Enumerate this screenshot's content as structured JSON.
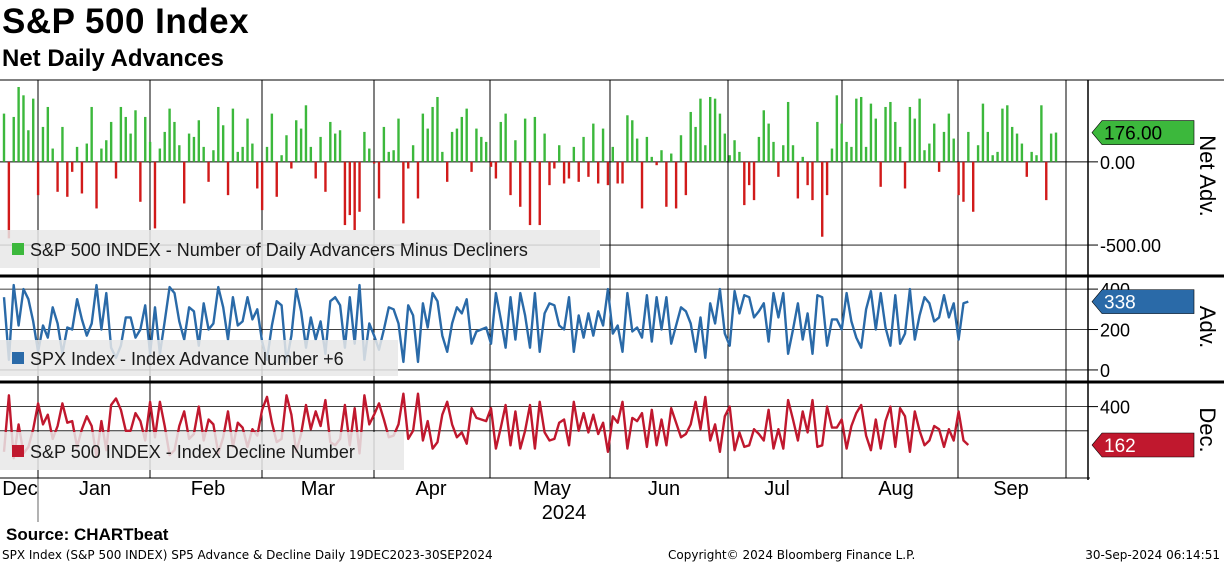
{
  "header": {
    "title": "S&P 500 Index",
    "subtitle": "Net Daily Advances"
  },
  "footer": {
    "source": "Source: CHARTbeat",
    "left": "SPX Index (S&P 500 INDEX) SP5 Advance & Decline  Daily 19DEC2023-30SEP2024",
    "mid": "Copyright© 2024 Bloomberg Finance L.P.",
    "right": "30-Sep-2024 06:14:51"
  },
  "colors": {
    "positive": "#3cb83c",
    "negative": "#d11a1a",
    "advance": "#2a6aa8",
    "decline": "#c0182e",
    "net_tag": "#3cb83c",
    "adv_tag": "#2a6aa8",
    "dec_tag": "#c0182e"
  },
  "chart_data": [
    {
      "type": "bar",
      "title": "Net Daily Advances",
      "ylabel": "Net Adv.",
      "legend": "S&P 500 INDEX - Number of Daily Advancers Minus Decliners",
      "legend_placement": "bottom-left",
      "yticks": [
        "0.00",
        "-500.00"
      ],
      "ylim": [
        -650,
        480
      ],
      "last_value_label": "176.00",
      "values": [
        290,
        -460,
        270,
        450,
        400,
        190,
        380,
        -200,
        210,
        330,
        80,
        -180,
        210,
        -210,
        -60,
        90,
        -190,
        110,
        330,
        -280,
        80,
        130,
        240,
        -100,
        330,
        270,
        170,
        310,
        -240,
        270,
        120,
        -400,
        80,
        180,
        320,
        240,
        100,
        -250,
        170,
        150,
        250,
        90,
        -120,
        70,
        330,
        220,
        -200,
        320,
        60,
        90,
        260,
        110,
        -160,
        -290,
        90,
        290,
        -210,
        40,
        160,
        -40,
        250,
        200,
        340,
        90,
        -100,
        150,
        -180,
        240,
        170,
        190,
        -380,
        -320,
        -410,
        -300,
        180,
        80,
        -10,
        -220,
        210,
        60,
        70,
        260,
        -370,
        -40,
        100,
        -220,
        290,
        200,
        330,
        390,
        60,
        -120,
        180,
        200,
        270,
        320,
        -60,
        200,
        150,
        120,
        -30,
        -100,
        240,
        290,
        -200,
        130,
        -270,
        260,
        -380,
        270,
        -380,
        170,
        -140,
        -40,
        100,
        -130,
        -100,
        90,
        -120,
        150,
        -90,
        230,
        -130,
        200,
        -140,
        90,
        -130,
        -130,
        280,
        250,
        140,
        -280,
        150,
        30,
        -20,
        70,
        -270,
        50,
        -280,
        160,
        -200,
        300,
        210,
        380,
        100,
        390,
        380,
        290,
        170,
        40,
        130,
        60,
        -260,
        -140,
        -230,
        150,
        310,
        230,
        120,
        -90,
        100,
        360,
        100,
        -220,
        30,
        -140,
        -230,
        240,
        -450,
        -200,
        80,
        400,
        230,
        120,
        90,
        380,
        390,
        90,
        350,
        260,
        -150,
        330,
        360,
        240,
        90,
        -160,
        330,
        260,
        380,
        70,
        110,
        230,
        -60,
        180,
        290,
        140,
        -200,
        -240,
        180,
        -300,
        100,
        350,
        180,
        40,
        60,
        320,
        340,
        210,
        170,
        110,
        -90,
        60,
        40,
        340,
        -230,
        170,
        176
      ]
    },
    {
      "type": "line",
      "title": "SPX Index - Index Advance Number +6",
      "ylabel": "Adv.",
      "legend": "SPX Index - Index Advance Number +6",
      "legend_placement": "bottom-left",
      "yticks": [
        "400",
        "200",
        "0"
      ],
      "ylim": [
        -30,
        450
      ],
      "last_value_label": "338",
      "values": [
        360,
        50,
        420,
        220,
        400,
        350,
        240,
        90,
        220,
        160,
        310,
        230,
        80,
        210,
        200,
        350,
        250,
        170,
        230,
        420,
        200,
        380,
        110,
        60,
        120,
        260,
        260,
        160,
        200,
        320,
        80,
        310,
        80,
        240,
        410,
        380,
        240,
        150,
        310,
        290,
        120,
        330,
        200,
        230,
        410,
        310,
        150,
        360,
        220,
        240,
        360,
        250,
        300,
        140,
        50,
        220,
        340,
        320,
        40,
        170,
        400,
        290,
        110,
        260,
        150,
        240,
        80,
        340,
        360,
        320,
        110,
        360,
        130,
        420,
        50,
        230,
        170,
        100,
        200,
        310,
        300,
        230,
        40,
        320,
        270,
        40,
        330,
        210,
        380,
        340,
        170,
        90,
        230,
        310,
        280,
        350,
        130,
        190,
        200,
        210,
        130,
        380,
        250,
        110,
        360,
        150,
        380,
        270,
        110,
        380,
        90,
        280,
        330,
        320,
        220,
        200,
        360,
        90,
        270,
        160,
        280,
        170,
        290,
        220,
        400,
        180,
        220,
        90,
        380,
        190,
        210,
        160,
        370,
        140,
        360,
        200,
        360,
        130,
        220,
        310,
        290,
        230,
        90,
        260,
        60,
        330,
        230,
        400,
        180,
        120,
        390,
        280,
        370,
        360,
        260,
        290,
        330,
        140,
        380,
        260,
        380,
        80,
        200,
        330,
        150,
        280,
        80,
        370,
        360,
        120,
        250,
        250,
        200,
        380,
        240,
        160,
        110,
        300,
        390,
        200,
        380,
        210,
        120,
        370,
        130,
        180,
        400,
        150,
        270,
        360,
        330,
        240,
        260,
        370,
        260,
        330,
        150,
        330,
        338
      ]
    },
    {
      "type": "line",
      "title": "S&P 500 INDEX - Index Decline Number",
      "ylabel": "Dec.",
      "legend": "S&P 500 INDEX - Index Decline Number",
      "legend_placement": "bottom-left",
      "yticks": [
        "400"
      ],
      "ylim": [
        -30,
        540
      ],
      "last_value_label": "162",
      "values": [
        120,
        470,
        80,
        290,
        110,
        150,
        260,
        420,
        290,
        350,
        200,
        280,
        420,
        300,
        310,
        150,
        260,
        340,
        280,
        90,
        310,
        130,
        410,
        450,
        380,
        250,
        250,
        360,
        310,
        190,
        430,
        210,
        430,
        280,
        100,
        130,
        280,
        370,
        200,
        230,
        400,
        190,
        320,
        290,
        110,
        210,
        370,
        150,
        300,
        270,
        150,
        260,
        220,
        380,
        460,
        300,
        180,
        200,
        470,
        350,
        120,
        230,
        410,
        260,
        370,
        280,
        440,
        180,
        160,
        200,
        410,
        160,
        390,
        110,
        470,
        290,
        350,
        420,
        320,
        210,
        220,
        290,
        480,
        200,
        250,
        480,
        190,
        310,
        140,
        180,
        350,
        430,
        290,
        210,
        240,
        170,
        390,
        330,
        320,
        310,
        390,
        140,
        270,
        410,
        160,
        370,
        140,
        250,
        410,
        140,
        430,
        240,
        190,
        200,
        300,
        320,
        160,
        430,
        250,
        360,
        240,
        350,
        230,
        300,
        120,
        340,
        300,
        430,
        140,
        330,
        310,
        360,
        150,
        380,
        160,
        320,
        160,
        390,
        300,
        210,
        230,
        290,
        430,
        260,
        460,
        190,
        290,
        120,
        340,
        400,
        130,
        240,
        150,
        160,
        260,
        230,
        190,
        380,
        140,
        260,
        140,
        440,
        320,
        190,
        370,
        240,
        440,
        150,
        160,
        400,
        270,
        270,
        320,
        140,
        280,
        360,
        410,
        220,
        130,
        320,
        140,
        310,
        400,
        150,
        390,
        340,
        120,
        370,
        250,
        160,
        190,
        280,
        260,
        150,
        260,
        190,
        370,
        190,
        162
      ]
    }
  ],
  "xaxis": {
    "months": [
      "Dec",
      "Jan",
      "Feb",
      "Mar",
      "Apr",
      "May",
      "Jun",
      "Jul",
      "Aug",
      "Sep"
    ],
    "year": "2024"
  }
}
